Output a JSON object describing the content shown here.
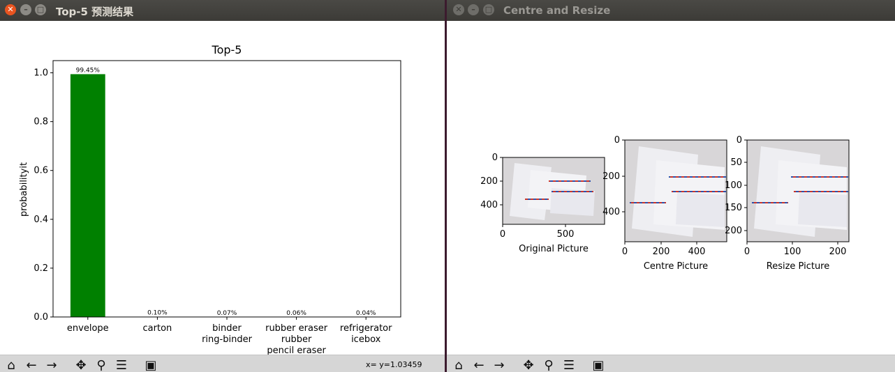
{
  "window1": {
    "title": "Top-5 预测结果",
    "status": "x= y=1.03459"
  },
  "window2": {
    "title": "Centre and Resize"
  },
  "colors": {
    "bar": "#008000",
    "close_button": "#e95420"
  },
  "chart_data": [
    {
      "type": "bar",
      "title": "Top-5",
      "xlabel": "",
      "ylabel": "probabilityit",
      "categories": [
        "envelope",
        "carton",
        "binder ring-binder",
        "rubber eraser rubber pencil eraser",
        "refrigerator icebox"
      ],
      "category_lines": [
        [
          "envelope"
        ],
        [
          "carton"
        ],
        [
          "binder",
          "ring-binder"
        ],
        [
          "rubber eraser",
          "rubber",
          "pencil eraser"
        ],
        [
          "refrigerator",
          "icebox"
        ]
      ],
      "values": [
        0.9945,
        0.001,
        0.0007,
        0.0006,
        0.0004
      ],
      "data_labels": [
        "99.45%",
        "0.10%",
        "0.07%",
        "0.06%",
        "0.04%"
      ],
      "ylim": [
        0,
        1.05
      ],
      "yticks": [
        "0.0",
        "0.2",
        "0.4",
        "0.6",
        "0.8",
        "1.0"
      ],
      "grid": false
    },
    {
      "type": "image",
      "xlabel": "Original Picture",
      "xticks": [
        "0",
        "500"
      ],
      "yticks": [
        "0",
        "200",
        "400"
      ]
    },
    {
      "type": "image",
      "xlabel": "Centre Picture",
      "xticks": [
        "0",
        "200",
        "400"
      ],
      "yticks": [
        "0",
        "200",
        "400"
      ]
    },
    {
      "type": "image",
      "xlabel": "Resize Picture",
      "xticks": [
        "0",
        "100",
        "200"
      ],
      "yticks": [
        "0",
        "50",
        "100",
        "150",
        "200"
      ]
    }
  ],
  "toolbar_icons": [
    "home-icon",
    "back-arrow-icon",
    "forward-arrow-icon",
    "pan-icon",
    "zoom-icon",
    "subplots-icon",
    "save-icon"
  ]
}
